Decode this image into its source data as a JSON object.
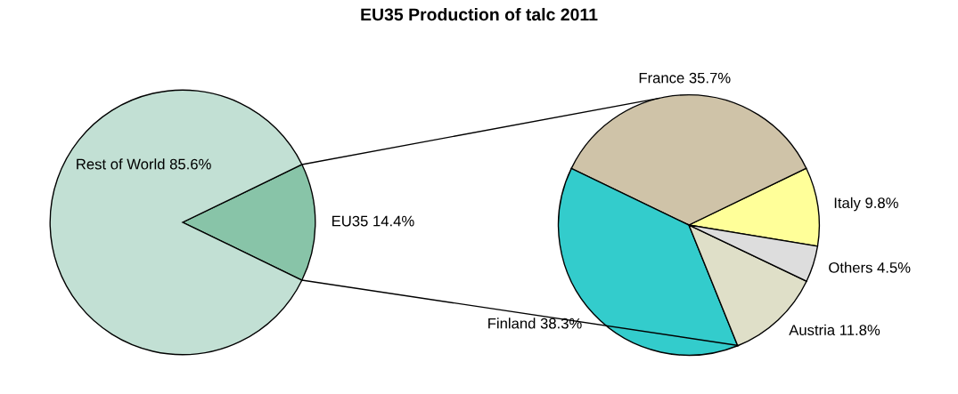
{
  "chart_data": [
    {
      "type": "pie",
      "title": "EU35 Production of talc 2011",
      "categories": [
        "EU35",
        "Rest of World"
      ],
      "values": [
        14.4,
        85.6
      ],
      "colors": [
        "#88c4a8",
        "#c2e0d4"
      ],
      "value_labels": [
        "14.4%",
        "85.6%"
      ]
    },
    {
      "type": "pie",
      "categories": [
        "Italy",
        "France",
        "Finland",
        "Austria",
        "Others"
      ],
      "values": [
        9.8,
        35.7,
        38.3,
        11.8,
        4.5
      ],
      "colors": [
        "#ffff99",
        "#cfc3a8",
        "#33cccc",
        "#dfdfc8",
        "#dddddd"
      ],
      "value_labels": [
        "9.8%",
        "35.7%",
        "38.3%",
        "11.8%",
        "4.5%"
      ]
    }
  ]
}
